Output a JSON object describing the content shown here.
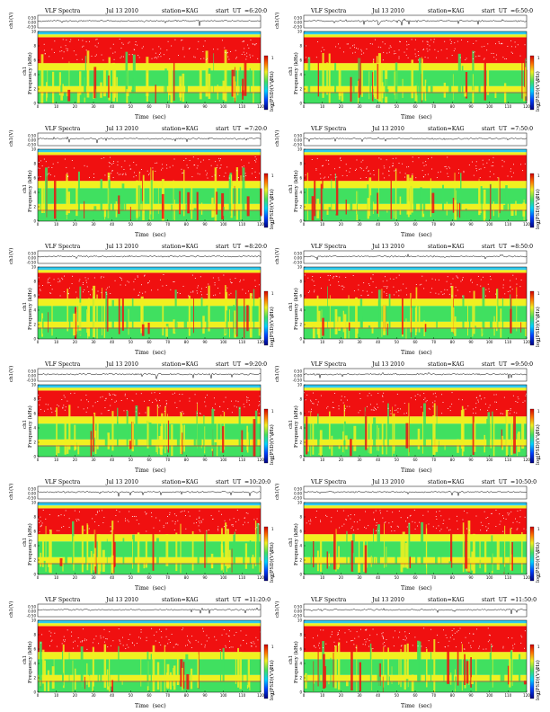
{
  "chart_data": [
    {
      "type": "heatmap",
      "title": "VLF Spectra",
      "date": "Jul 13 2010",
      "station": "station=KAG",
      "start_label": "start  UT  =6:20:0",
      "top_ylabel": "ch1(V)",
      "top_yticks": [
        "0.50",
        "0.00",
        "-0.50"
      ],
      "ylabel_ch": "ch1",
      "ylabel": "Frequency  (kHz)",
      "yticks": [
        "0",
        "2",
        "4",
        "6",
        "8",
        "10"
      ],
      "xlabel": "Time  (sec)",
      "xticks": [
        "0",
        "10",
        "20",
        "30",
        "40",
        "50",
        "60",
        "70",
        "80",
        "90",
        "100",
        "110",
        "120"
      ],
      "x_range": [
        0,
        120
      ],
      "y_range": [
        0,
        10
      ],
      "colorbar_label": "log(PSD)(V²/Hz)",
      "colorbar_ticks": [
        "1",
        "0",
        "-1"
      ]
    },
    {
      "type": "heatmap",
      "title": "VLF Spectra",
      "date": "Jul 13 2010",
      "station": "station=KAG",
      "start_label": "start  UT  =6:50:0",
      "top_ylabel": "ch1(V)",
      "top_yticks": [
        "0.50",
        "0.00",
        "-0.50"
      ],
      "ylabel_ch": "ch1",
      "ylabel": "Frequency  (kHz)",
      "yticks": [
        "0",
        "2",
        "4",
        "6",
        "8",
        "10"
      ],
      "xlabel": "Time  (sec)",
      "xticks": [
        "0",
        "10",
        "20",
        "30",
        "40",
        "50",
        "60",
        "70",
        "80",
        "90",
        "100",
        "110",
        "120"
      ],
      "x_range": [
        0,
        120
      ],
      "y_range": [
        0,
        10
      ],
      "colorbar_label": "log(PSD)(V²/Hz)",
      "colorbar_ticks": [
        "1",
        "0",
        "-1"
      ]
    },
    {
      "type": "heatmap",
      "title": "VLF Spectra",
      "date": "Jul 13 2010",
      "station": "station=KAG",
      "start_label": "start  UT  =7:20:0",
      "top_ylabel": "ch1(V)",
      "top_yticks": [
        "0.50",
        "0.00",
        "-0.50"
      ],
      "ylabel_ch": "ch1",
      "ylabel": "Frequency  (kHz)",
      "yticks": [
        "0",
        "2",
        "4",
        "6",
        "8",
        "10"
      ],
      "xlabel": "Time  (sec)",
      "xticks": [
        "0",
        "10",
        "20",
        "30",
        "40",
        "50",
        "60",
        "70",
        "80",
        "90",
        "100",
        "110",
        "120"
      ],
      "x_range": [
        0,
        120
      ],
      "y_range": [
        0,
        10
      ],
      "colorbar_label": "log(PSD)(V²/Hz)",
      "colorbar_ticks": [
        "1",
        "0",
        "-1"
      ]
    },
    {
      "type": "heatmap",
      "title": "VLF Spectra",
      "date": "Jul 13 2010",
      "station": "station=KAG",
      "start_label": "start  UT  =7:50:0",
      "top_ylabel": "ch1(V)",
      "top_yticks": [
        "0.50",
        "0.00",
        "-0.50"
      ],
      "ylabel_ch": "ch1",
      "ylabel": "Frequency  (kHz)",
      "yticks": [
        "0",
        "2",
        "4",
        "6",
        "8",
        "10"
      ],
      "xlabel": "Time  (sec)",
      "xticks": [
        "0",
        "10",
        "20",
        "30",
        "40",
        "50",
        "60",
        "70",
        "80",
        "90",
        "100",
        "110",
        "120"
      ],
      "x_range": [
        0,
        120
      ],
      "y_range": [
        0,
        10
      ],
      "colorbar_label": "log(PSD)(V²/Hz)",
      "colorbar_ticks": [
        "1",
        "0",
        "-1"
      ]
    },
    {
      "type": "heatmap",
      "title": "VLF Spectra",
      "date": "Jul 13 2010",
      "station": "station=KAG",
      "start_label": "start  UT  =8:20:0",
      "top_ylabel": "ch1(V)",
      "top_yticks": [
        "0.50",
        "0.00",
        "-0.50"
      ],
      "ylabel_ch": "ch1",
      "ylabel": "Frequency  (kHz)",
      "yticks": [
        "0",
        "2",
        "4",
        "6",
        "8",
        "10"
      ],
      "xlabel": "Time  (sec)",
      "xticks": [
        "0",
        "10",
        "20",
        "30",
        "40",
        "50",
        "60",
        "70",
        "80",
        "90",
        "100",
        "110",
        "120"
      ],
      "x_range": [
        0,
        120
      ],
      "y_range": [
        0,
        10
      ],
      "colorbar_label": "log(PSD)(V²/Hz)",
      "colorbar_ticks": [
        "1",
        "0",
        "-1"
      ]
    },
    {
      "type": "heatmap",
      "title": "VLF Spectra",
      "date": "Jul 13 2010",
      "station": "station=KAG",
      "start_label": "start  UT  =8:50:0",
      "top_ylabel": "ch1(V)",
      "top_yticks": [
        "0.50",
        "0.00",
        "-0.50"
      ],
      "ylabel_ch": "ch1",
      "ylabel": "Frequency  (kHz)",
      "yticks": [
        "0",
        "2",
        "4",
        "6",
        "8",
        "10"
      ],
      "xlabel": "Time  (sec)",
      "xticks": [
        "0",
        "10",
        "20",
        "30",
        "40",
        "50",
        "60",
        "70",
        "80",
        "90",
        "100",
        "110",
        "120"
      ],
      "x_range": [
        0,
        120
      ],
      "y_range": [
        0,
        10
      ],
      "colorbar_label": "log(PSD)(V²/Hz)",
      "colorbar_ticks": [
        "1",
        "0",
        "-1"
      ]
    },
    {
      "type": "heatmap",
      "title": "VLF Spectra",
      "date": "Jul 13 2010",
      "station": "station=KAG",
      "start_label": "start  UT  =9:20:0",
      "top_ylabel": "ch1(V)",
      "top_yticks": [
        "0.50",
        "0.00",
        "-0.50"
      ],
      "ylabel_ch": "ch1",
      "ylabel": "Frequency  (kHz)",
      "yticks": [
        "0",
        "2",
        "4",
        "6",
        "8",
        "10"
      ],
      "xlabel": "Time  (sec)",
      "xticks": [
        "0",
        "10",
        "20",
        "30",
        "40",
        "50",
        "60",
        "70",
        "80",
        "90",
        "100",
        "110",
        "120"
      ],
      "x_range": [
        0,
        120
      ],
      "y_range": [
        0,
        10
      ],
      "colorbar_label": "log(PSD)(V²/Hz)",
      "colorbar_ticks": [
        "1",
        "0",
        "-1"
      ]
    },
    {
      "type": "heatmap",
      "title": "VLF Spectra",
      "date": "Jul 13 2010",
      "station": "station=KAG",
      "start_label": "start  UT  =9:50:0",
      "top_ylabel": "ch1(V)",
      "top_yticks": [
        "0.50",
        "0.00",
        "-0.50"
      ],
      "ylabel_ch": "ch1",
      "ylabel": "Frequency  (kHz)",
      "yticks": [
        "0",
        "2",
        "4",
        "6",
        "8",
        "10"
      ],
      "xlabel": "Time  (sec)",
      "xticks": [
        "0",
        "10",
        "20",
        "30",
        "40",
        "50",
        "60",
        "70",
        "80",
        "90",
        "100",
        "110",
        "120"
      ],
      "x_range": [
        0,
        120
      ],
      "y_range": [
        0,
        10
      ],
      "colorbar_label": "log(PSD)(V²/Hz)",
      "colorbar_ticks": [
        "1",
        "0",
        "-1"
      ]
    },
    {
      "type": "heatmap",
      "title": "VLF Spectra",
      "date": "Jul 13 2010",
      "station": "station=KAG",
      "start_label": "start  UT  =10:20:0",
      "top_ylabel": "ch1(V)",
      "top_yticks": [
        "0.50",
        "0.00",
        "-0.50"
      ],
      "ylabel_ch": "ch1",
      "ylabel": "Frequency  (kHz)",
      "yticks": [
        "0",
        "2",
        "4",
        "6",
        "8",
        "10"
      ],
      "xlabel": "Time  (sec)",
      "xticks": [
        "0",
        "10",
        "20",
        "30",
        "40",
        "50",
        "60",
        "70",
        "80",
        "90",
        "100",
        "110",
        "120"
      ],
      "x_range": [
        0,
        120
      ],
      "y_range": [
        0,
        10
      ],
      "colorbar_label": "log(PSD)(V²/Hz)",
      "colorbar_ticks": [
        "1",
        "0",
        "-1"
      ]
    },
    {
      "type": "heatmap",
      "title": "VLF Spectra",
      "date": "Jul 13 2010",
      "station": "station=KAG",
      "start_label": "start  UT  =10:50:0",
      "top_ylabel": "ch1(V)",
      "top_yticks": [
        "0.50",
        "0.00",
        "-0.50"
      ],
      "ylabel_ch": "ch1",
      "ylabel": "Frequency  (kHz)",
      "yticks": [
        "0",
        "2",
        "4",
        "6",
        "8",
        "10"
      ],
      "xlabel": "Time  (sec)",
      "xticks": [
        "0",
        "10",
        "20",
        "30",
        "40",
        "50",
        "60",
        "70",
        "80",
        "90",
        "100",
        "110",
        "120"
      ],
      "x_range": [
        0,
        120
      ],
      "y_range": [
        0,
        10
      ],
      "colorbar_label": "log(PSD)(V²/Hz)",
      "colorbar_ticks": [
        "1",
        "0",
        "-1"
      ]
    },
    {
      "type": "heatmap",
      "title": "VLF Spectra",
      "date": "Jul 13 2010",
      "station": "station=KAG",
      "start_label": "start  UT  =11:20:0",
      "top_ylabel": "ch1(V)",
      "top_yticks": [
        "0.50",
        "0.00",
        "-0.50"
      ],
      "ylabel_ch": "ch1",
      "ylabel": "Frequency  (kHz)",
      "yticks": [
        "0",
        "2",
        "4",
        "6",
        "8",
        "10"
      ],
      "xlabel": "Time  (sec)",
      "xticks": [
        "0",
        "10",
        "20",
        "30",
        "40",
        "50",
        "60",
        "70",
        "80",
        "90",
        "100",
        "110",
        "120"
      ],
      "x_range": [
        0,
        120
      ],
      "y_range": [
        0,
        10
      ],
      "colorbar_label": "log(PSD)(V²/Hz)",
      "colorbar_ticks": [
        "1",
        "0",
        "-1"
      ]
    },
    {
      "type": "heatmap",
      "title": "VLF Spectra",
      "date": "Jul 13 2010",
      "station": "station=KAG",
      "start_label": "start  UT  =11:50:0",
      "top_ylabel": "ch1(V)",
      "top_yticks": [
        "0.50",
        "0.00",
        "-0.50"
      ],
      "ylabel_ch": "ch1",
      "ylabel": "Frequency  (kHz)",
      "yticks": [
        "0",
        "2",
        "4",
        "6",
        "8",
        "10"
      ],
      "xlabel": "Time  (sec)",
      "xticks": [
        "0",
        "10",
        "20",
        "30",
        "40",
        "50",
        "60",
        "70",
        "80",
        "90",
        "100",
        "110",
        "120"
      ],
      "x_range": [
        0,
        120
      ],
      "y_range": [
        0,
        10
      ],
      "colorbar_label": "log(PSD)(V²/Hz)",
      "colorbar_ticks": [
        "1",
        "0",
        "-1"
      ]
    }
  ],
  "colors": {
    "low": "#2ec8f0",
    "band_low": "#40e060",
    "mid": "#f0f020",
    "high": "#f01010",
    "peak": "#ffffff",
    "waveform": "#000000"
  }
}
